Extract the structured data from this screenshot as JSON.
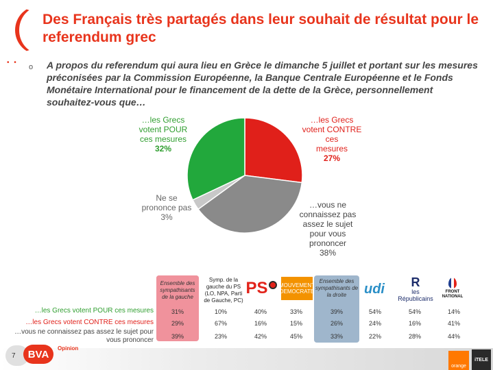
{
  "header": {
    "title": "Des Français très partagés dans leur souhait de résultat pour le referendum grec",
    "bullet": "o",
    "question": "A propos du referendum qui aura lieu en Grèce le dimanche 5 juillet et portant sur les mesures préconisées par la Commission Européenne, la Banque Centrale Européenne et le Fonds Monétaire International pour le financement de la dette de la Grèce, personnellement souhaitez-vous que…"
  },
  "chart_data": [
    {
      "type": "pie",
      "title": "",
      "slices": [
        {
          "label_lines": [
            "…les Grecs",
            "votent CONTRE ces",
            "mesures"
          ],
          "value": 27,
          "value_label": "27%",
          "color": "#e0201a"
        },
        {
          "label_lines": [
            "…vous ne",
            "connaissez pas",
            "assez le sujet",
            "pour vous",
            "prononcer"
          ],
          "value": 38,
          "value_label": "38%",
          "color": "#8a8a8a"
        },
        {
          "label_lines": [
            "Ne se",
            "prononce pas"
          ],
          "value": 3,
          "value_label": "3%",
          "color": "#c8c8c8"
        },
        {
          "label_lines": [
            "…les Grecs",
            "votent POUR",
            "ces mesures"
          ],
          "value": 32,
          "value_label": "32%",
          "color": "#22a83c"
        }
      ]
    },
    {
      "type": "table",
      "columns": [
        {
          "label": "Ensemble des sympathisants de la gauche",
          "kind": "text"
        },
        {
          "label": "Symp. de la gauche du PS (LO, NPA, Parti de Gauche, PC)",
          "kind": "text"
        },
        {
          "label": "PS",
          "kind": "logo"
        },
        {
          "label": "MOUVEMENT DEMOCRATE",
          "kind": "logo"
        },
        {
          "label": "Ensemble des sympathisants de la droite",
          "kind": "text"
        },
        {
          "label": "udi",
          "kind": "logo"
        },
        {
          "label": "les Républicains",
          "kind": "logo"
        },
        {
          "label": "FRONT NATIONAL",
          "kind": "logo"
        }
      ],
      "rows": [
        {
          "label": "…les Grecs votent POUR ces mesures",
          "values": [
            "31%",
            "10%",
            "40%",
            "33%",
            "39%",
            "54%",
            "54%",
            "14%"
          ]
        },
        {
          "label": "…les Grecs votent CONTRE ces mesures",
          "values": [
            "29%",
            "67%",
            "16%",
            "15%",
            "26%",
            "24%",
            "16%",
            "41%"
          ]
        },
        {
          "label": "…vous ne connaissez pas assez le sujet pour vous prononcer",
          "values": [
            "39%",
            "23%",
            "42%",
            "45%",
            "33%",
            "22%",
            "28%",
            "44%"
          ]
        }
      ]
    }
  ],
  "logos": {
    "ps": "PS",
    "modem_lines": [
      "MOUVEMENT",
      "DEMOCRATE"
    ],
    "udi": "udi",
    "rep_r": "R",
    "rep_lines": [
      "les",
      "Républicains"
    ],
    "fn_lines": [
      "FRONT",
      "NATIONAL"
    ]
  },
  "footer": {
    "page_number": "7",
    "bva": "BVA",
    "opinion": "Opinion",
    "orange": "orange",
    "itele": "iTELE"
  },
  "colors": {
    "accent": "#e8341c",
    "pour": "#22a83c",
    "contre": "#e0201a",
    "gauche_box": "#f0929c",
    "droite_box": "#9fb6cc"
  }
}
